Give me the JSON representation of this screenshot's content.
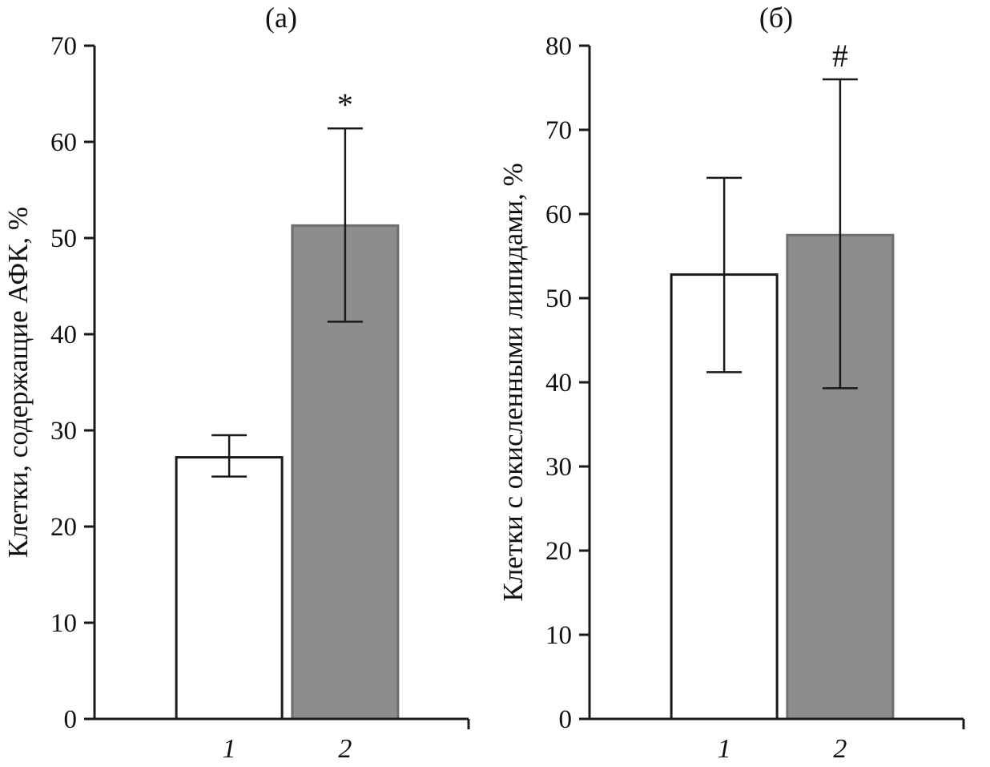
{
  "colors": {
    "axis": "#1a1a1a",
    "background": "#ffffff"
  },
  "chart_data": [
    {
      "type": "bar",
      "panel_label": "(а)",
      "ylabel": "Клетки, содержащие АФК, %",
      "categories": [
        "1",
        "2"
      ],
      "values": [
        27.2,
        51.3
      ],
      "error_upper": [
        29.5,
        61.4
      ],
      "error_lower": [
        25.2,
        41.3
      ],
      "annotations": [
        "",
        "*"
      ],
      "ylim": [
        0,
        70
      ],
      "ytick_step": 10,
      "bar_fills": [
        "#ffffff",
        "#8d8d8d"
      ],
      "bar_strokes": [
        "#1a1a1a",
        "#6e6e6e"
      ],
      "legend": "none",
      "grid": false
    },
    {
      "type": "bar",
      "panel_label": "(б)",
      "ylabel": "Клетки с окисленными липидами, %",
      "categories": [
        "1",
        "2"
      ],
      "values": [
        52.8,
        57.5
      ],
      "error_upper": [
        64.3,
        76.0
      ],
      "error_lower": [
        41.2,
        39.3
      ],
      "annotations": [
        "",
        "#"
      ],
      "ylim": [
        0,
        80
      ],
      "ytick_step": 10,
      "bar_fills": [
        "#ffffff",
        "#8d8d8d"
      ],
      "bar_strokes": [
        "#1a1a1a",
        "#6e6e6e"
      ],
      "legend": "none",
      "grid": false
    }
  ]
}
